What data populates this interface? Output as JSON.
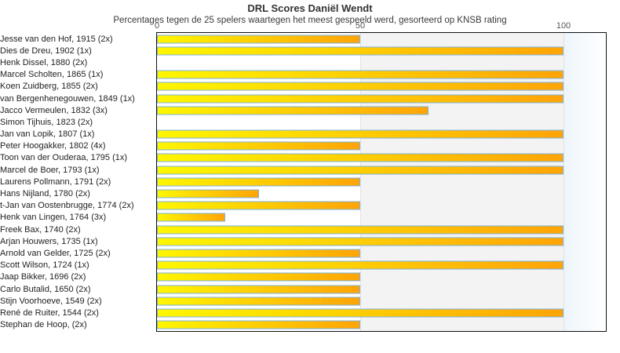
{
  "chart_data": {
    "type": "bar",
    "orientation": "horizontal",
    "title": "DRL Scores Daniël Wendt",
    "subtitle": "Percentages tegen de 25 spelers waartegen het meest gespeeld werd, gesorteerd op KNSB rating",
    "categories": [
      "Jesse van den Hof, 1915 (2x)",
      "Dies de Dreu, 1902 (1x)",
      "Henk Dissel, 1880 (2x)",
      "Marcel Scholten, 1865 (1x)",
      "Koen Zuidberg, 1855 (2x)",
      "van Bergenhenegouwen, 1849 (1x)",
      "Jacco Vermeulen, 1832 (3x)",
      "Simon Tijhuis, 1823 (2x)",
      "Jan van Lopik, 1807 (1x)",
      "Peter Hoogakker, 1802 (4x)",
      "Toon van der Ouderaa, 1795 (1x)",
      "Marcel de Boer, 1793 (1x)",
      "Laurens Pollmann, 1791 (2x)",
      "Hans Nijland, 1780 (2x)",
      "t-Jan van Oostenbrugge, 1774 (2x)",
      "Henk van Lingen, 1764 (3x)",
      "Freek Bax, 1740 (2x)",
      "Arjan Houwers, 1735 (1x)",
      "Arnold van Gelder, 1725 (2x)",
      "Scott Wilson, 1724 (1x)",
      "Jaap Bikker, 1696 (2x)",
      "Carlo Butalid, 1650 (2x)",
      "Stijn Voorhoeve, 1549 (2x)",
      "René de Ruiter, 1544 (2x)",
      "Stephan de Hoop,  (2x)"
    ],
    "values": [
      50,
      100,
      0,
      100,
      100,
      100,
      66.7,
      0,
      100,
      50,
      100,
      100,
      50,
      25,
      50,
      16.7,
      100,
      100,
      50,
      100,
      50,
      50,
      50,
      100,
      50
    ],
    "xlabel": "",
    "ylabel": "",
    "x_ticks": [
      0,
      50,
      100
    ],
    "xlim": [
      0,
      110.4
    ],
    "legend": "none",
    "grid": "vertical plot bands: 0-50 white, 50-100 gray, beyond 100 pale blue",
    "colors": {
      "bar_gradient_start": "#fff600",
      "bar_gradient_end": "#ffa407",
      "bar_border": "#7db3d9",
      "band_gray": "#f3f3f3",
      "band_blue": "#edf5fb",
      "plot_border": "#111111",
      "title_color": "#333333",
      "label_color": "#222222",
      "tick_color": "#555555"
    }
  }
}
